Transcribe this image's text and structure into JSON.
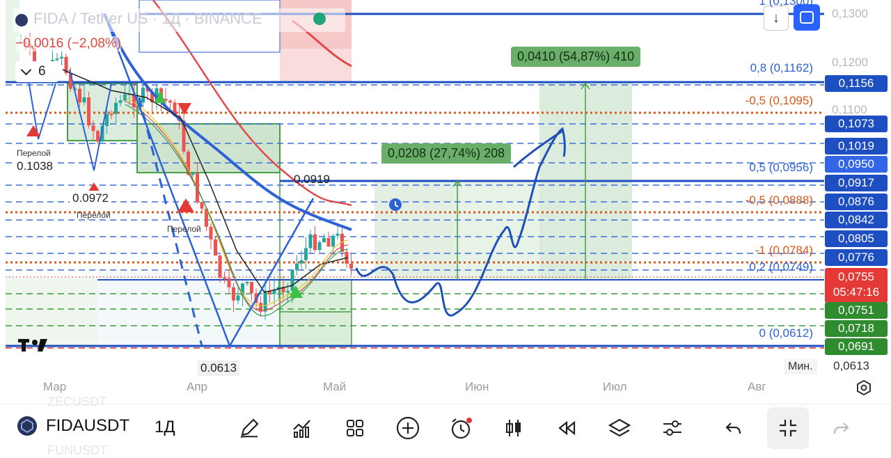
{
  "header": {
    "symbol_title": "FIDA / Tether US · 1Д · BINANCE",
    "change": "−0,0016 (−2,08%)",
    "indicators_count": "6"
  },
  "price_axis": {
    "labels": [
      "0,1300",
      "0,1200",
      "0,1100"
    ],
    "tags": [
      {
        "value": "0,1156",
        "color": "#1e4fc2"
      },
      {
        "value": "0,1073",
        "color": "#1e4fc2"
      },
      {
        "value": "0,1019",
        "color": "#1e4fc2"
      },
      {
        "value": "0,0950",
        "color": "#3366e6"
      },
      {
        "value": "0,0917",
        "color": "#1e4fc2"
      },
      {
        "value": "0,0876",
        "color": "#1e4fc2"
      },
      {
        "value": "0,0842",
        "color": "#1e4fc2"
      },
      {
        "value": "0,0805",
        "color": "#1e4fc2"
      },
      {
        "value": "0,0776",
        "color": "#1e4fc2"
      },
      {
        "value": "0,0751",
        "color": "#2e8b2e"
      },
      {
        "value": "0,0718",
        "color": "#2e8b2e"
      },
      {
        "value": "0,0691",
        "color": "#2e8b2e"
      }
    ],
    "last_price": "0,0755",
    "countdown": "05:47:16",
    "min_label": "Мин.",
    "min_value": "0,0613"
  },
  "fib_levels": {
    "top": "1 (0,1300)",
    "l08": "0,8 (0,1162)",
    "m05a": "-0,5 (0,1095)",
    "l05": "0,5 (0,0956)",
    "m05b": "-0,5 (0,0888)",
    "m1": "-1 (0,0784)",
    "l02": "0,2 (0,0749)",
    "l0": "0 (0,0612)"
  },
  "positions": {
    "target1": "0,0208 (27,74%) 208",
    "target2": "0,0410 (54,87%) 410"
  },
  "annotations": {
    "perelom": "Перелой",
    "p1": "0.1038",
    "p2": "0.0972",
    "p3": "0.0919",
    "p4": "0.0613"
  },
  "time_axis": [
    "Мар",
    "Апр",
    "Май",
    "Июн",
    "Июл",
    "Авг"
  ],
  "toolbar": {
    "symbol": "FIDAUSDT",
    "interval": "1Д"
  },
  "bg_watermark": [
    "ZECUSDT",
    "FUNUSDT"
  ]
}
